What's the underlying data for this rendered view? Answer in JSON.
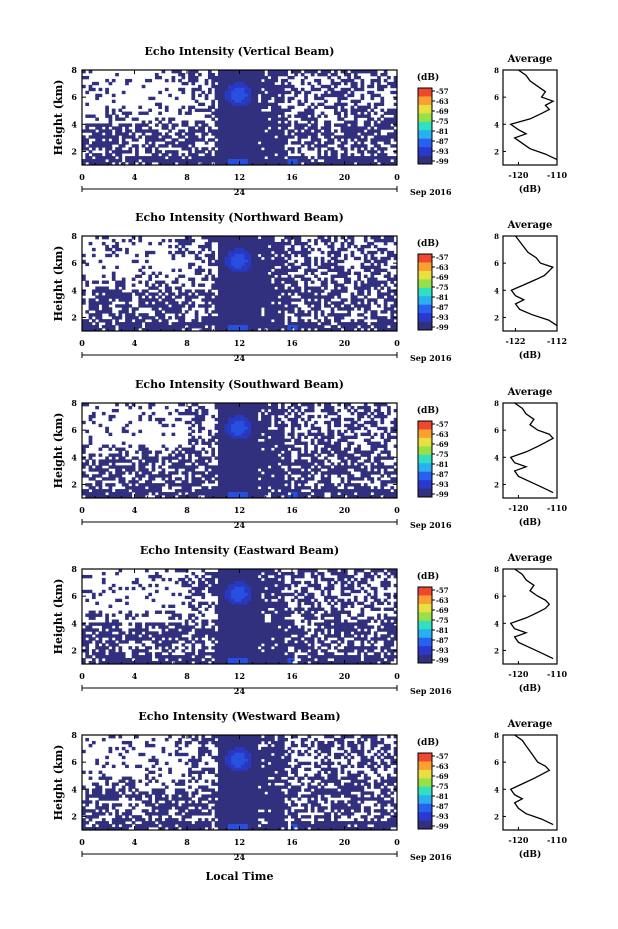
{
  "chart_data": {
    "type": "heatmap",
    "x_ticks": [
      "0",
      "4",
      "8",
      "12",
      "16",
      "20",
      "0"
    ],
    "x_range": [
      0,
      24
    ],
    "day_label": "24",
    "date_label": "Sep 2016",
    "y_ticks": [
      "2",
      "4",
      "6",
      "8"
    ],
    "y_range": [
      1,
      8
    ],
    "ylabel": "Height (km)",
    "xlabel": "Local Time",
    "colorbar_unit": "(dB)",
    "colorbar_ticks": [
      "-57",
      "-63",
      "-69",
      "-75",
      "-81",
      "-87",
      "-93",
      "-99"
    ],
    "colorbar_colors": [
      "#f04830",
      "#f8a030",
      "#e8e040",
      "#98e048",
      "#30e0c0",
      "#28b0f0",
      "#2860f0",
      "#2838d0",
      "#30307e"
    ],
    "profile_title": "Average",
    "profile_ylabel_ticks": [
      "2",
      "4",
      "6",
      "8"
    ],
    "profile_xunit": "(dB)",
    "panels": [
      {
        "title": "Echo Intensity (Vertical Beam)",
        "profile_xticks": [
          "-120",
          "-110"
        ],
        "profile_xrange": [
          -124,
          -110
        ],
        "profile": {
          "height": [
            1.4,
            1.8,
            2.2,
            2.6,
            3.0,
            3.3,
            3.6,
            4.0,
            4.4,
            4.8,
            5.1,
            5.4,
            5.7,
            6.0,
            6.4,
            6.8,
            7.2,
            7.6,
            8.0
          ],
          "value": [
            -110,
            -113,
            -117,
            -119,
            -121,
            -118,
            -120,
            -122,
            -117,
            -114,
            -112,
            -113,
            -111,
            -114,
            -113,
            -115,
            -117,
            -118,
            -120
          ]
        }
      },
      {
        "title": "Echo Intensity (Northward Beam)",
        "profile_xticks": [
          "-122",
          "-112"
        ],
        "profile_xrange": [
          -125,
          -112
        ],
        "profile": {
          "height": [
            1.4,
            1.8,
            2.2,
            2.6,
            3.0,
            3.3,
            3.6,
            4.0,
            4.4,
            4.8,
            5.1,
            5.4,
            5.7,
            6.0,
            6.4,
            6.8,
            7.2,
            7.6,
            8.0
          ],
          "value": [
            -112,
            -114,
            -118,
            -121,
            -122,
            -120,
            -122,
            -123,
            -120,
            -117,
            -115,
            -114,
            -113,
            -116,
            -117,
            -119,
            -120,
            -121,
            -122
          ]
        }
      },
      {
        "title": "Echo Intensity (Southward Beam)",
        "profile_xticks": [
          "-120",
          "-110"
        ],
        "profile_xrange": [
          -124,
          -110
        ],
        "profile": {
          "height": [
            1.4,
            1.8,
            2.2,
            2.6,
            3.0,
            3.3,
            3.6,
            4.0,
            4.4,
            4.8,
            5.1,
            5.4,
            5.7,
            6.0,
            6.4,
            6.8,
            7.2,
            7.6,
            8.0
          ],
          "value": [
            -111,
            -114,
            -117,
            -120,
            -121,
            -118,
            -121,
            -122,
            -118,
            -115,
            -113,
            -111,
            -112,
            -115,
            -117,
            -116,
            -118,
            -119,
            -121
          ]
        }
      },
      {
        "title": "Echo Intensity (Eastward Beam)",
        "profile_xticks": [
          "-120",
          "-110"
        ],
        "profile_xrange": [
          -124,
          -110
        ],
        "profile": {
          "height": [
            1.4,
            1.8,
            2.2,
            2.6,
            3.0,
            3.3,
            3.6,
            4.0,
            4.4,
            4.8,
            5.1,
            5.4,
            5.7,
            6.0,
            6.4,
            6.8,
            7.2,
            7.6,
            8.0
          ],
          "value": [
            -111,
            -114,
            -117,
            -120,
            -121,
            -118,
            -121,
            -122,
            -118,
            -115,
            -113,
            -112,
            -113,
            -115,
            -117,
            -116,
            -118,
            -119,
            -121
          ]
        }
      },
      {
        "title": "Echo Intensity (Westward Beam)",
        "profile_xticks": [
          "-120",
          "-110"
        ],
        "profile_xrange": [
          -124,
          -110
        ],
        "profile": {
          "height": [
            1.4,
            1.8,
            2.2,
            2.6,
            3.0,
            3.3,
            3.6,
            4.0,
            4.4,
            4.8,
            5.1,
            5.4,
            5.7,
            6.0,
            6.4,
            6.8,
            7.2,
            7.6,
            8.0
          ],
          "value": [
            -111,
            -114,
            -118,
            -120,
            -121,
            -119,
            -121,
            -122,
            -119,
            -116,
            -114,
            -112,
            -113,
            -115,
            -116,
            -117,
            -118,
            -119,
            -121
          ]
        }
      }
    ]
  }
}
